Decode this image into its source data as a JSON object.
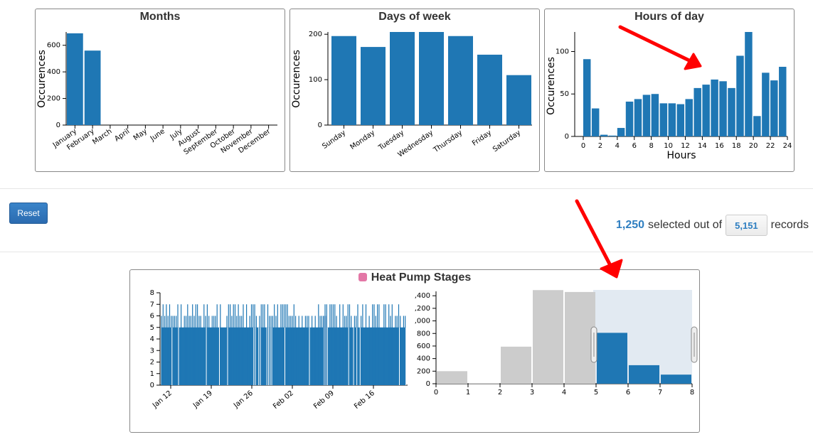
{
  "charts": {
    "months": {
      "title": "Months",
      "ylabel": "Occurences",
      "yticks": [
        "0",
        "200",
        "400",
        "600"
      ],
      "categories": [
        "January",
        "February",
        "March",
        "April",
        "May",
        "June",
        "July",
        "August",
        "September",
        "October",
        "November",
        "December"
      ],
      "values": [
        690,
        560,
        0,
        0,
        0,
        0,
        0,
        0,
        0,
        0,
        0,
        0
      ]
    },
    "days": {
      "title": "Days of week",
      "ylabel": "Occurences",
      "yticks": [
        "0",
        "100",
        "200"
      ],
      "categories": [
        "Sunday",
        "Monday",
        "Tuesday",
        "Wednesday",
        "Thursday",
        "Friday",
        "Saturday"
      ],
      "values": [
        196,
        172,
        205,
        205,
        196,
        155,
        110
      ]
    },
    "hours": {
      "title": "Hours of day",
      "ylabel": "Occurences",
      "xlabel": "Hours",
      "yticks": [
        "0",
        "50",
        "100"
      ],
      "xticks": [
        "0",
        "2",
        "4",
        "6",
        "8",
        "10",
        "12",
        "14",
        "16",
        "18",
        "20",
        "22",
        "24"
      ],
      "values": [
        91,
        33,
        2,
        1,
        10,
        41,
        44,
        49,
        50,
        39,
        39,
        38,
        44,
        57,
        61,
        67,
        65,
        57,
        95,
        123,
        24,
        75,
        66,
        82
      ]
    },
    "stages": {
      "title": "Heat Pump Stages",
      "timeline_yticks": [
        "0",
        "1",
        "2",
        "3",
        "4",
        "5",
        "6",
        "7",
        "8"
      ],
      "timeline_xticks": [
        "Jan 12",
        "Jan 19",
        "Jan 26",
        "Feb 02",
        "Feb 09",
        "Feb 16"
      ],
      "hist_yticks": [
        "0",
        "200",
        "400",
        "600",
        "800",
        ",000",
        ",200",
        ",400"
      ],
      "hist_xticks": [
        "0",
        "1",
        "2",
        "3",
        "4",
        "5",
        "6",
        "7",
        "8"
      ],
      "hist_values": [
        200,
        10,
        590,
        1490,
        1460,
        810,
        295,
        145
      ],
      "selected_range": [
        5,
        8
      ]
    }
  },
  "controls": {
    "reset_label": "Reset"
  },
  "counter": {
    "selected": "1,250",
    "middle_text": "selected out of",
    "total": "5,151",
    "suffix": "records"
  },
  "colors": {
    "bar": "#1f77b4",
    "bar_inactive": "#cccccc",
    "brush": "#e2eaf2",
    "legend": "#e377a6",
    "annotation_arrow": "#ff0000"
  }
}
